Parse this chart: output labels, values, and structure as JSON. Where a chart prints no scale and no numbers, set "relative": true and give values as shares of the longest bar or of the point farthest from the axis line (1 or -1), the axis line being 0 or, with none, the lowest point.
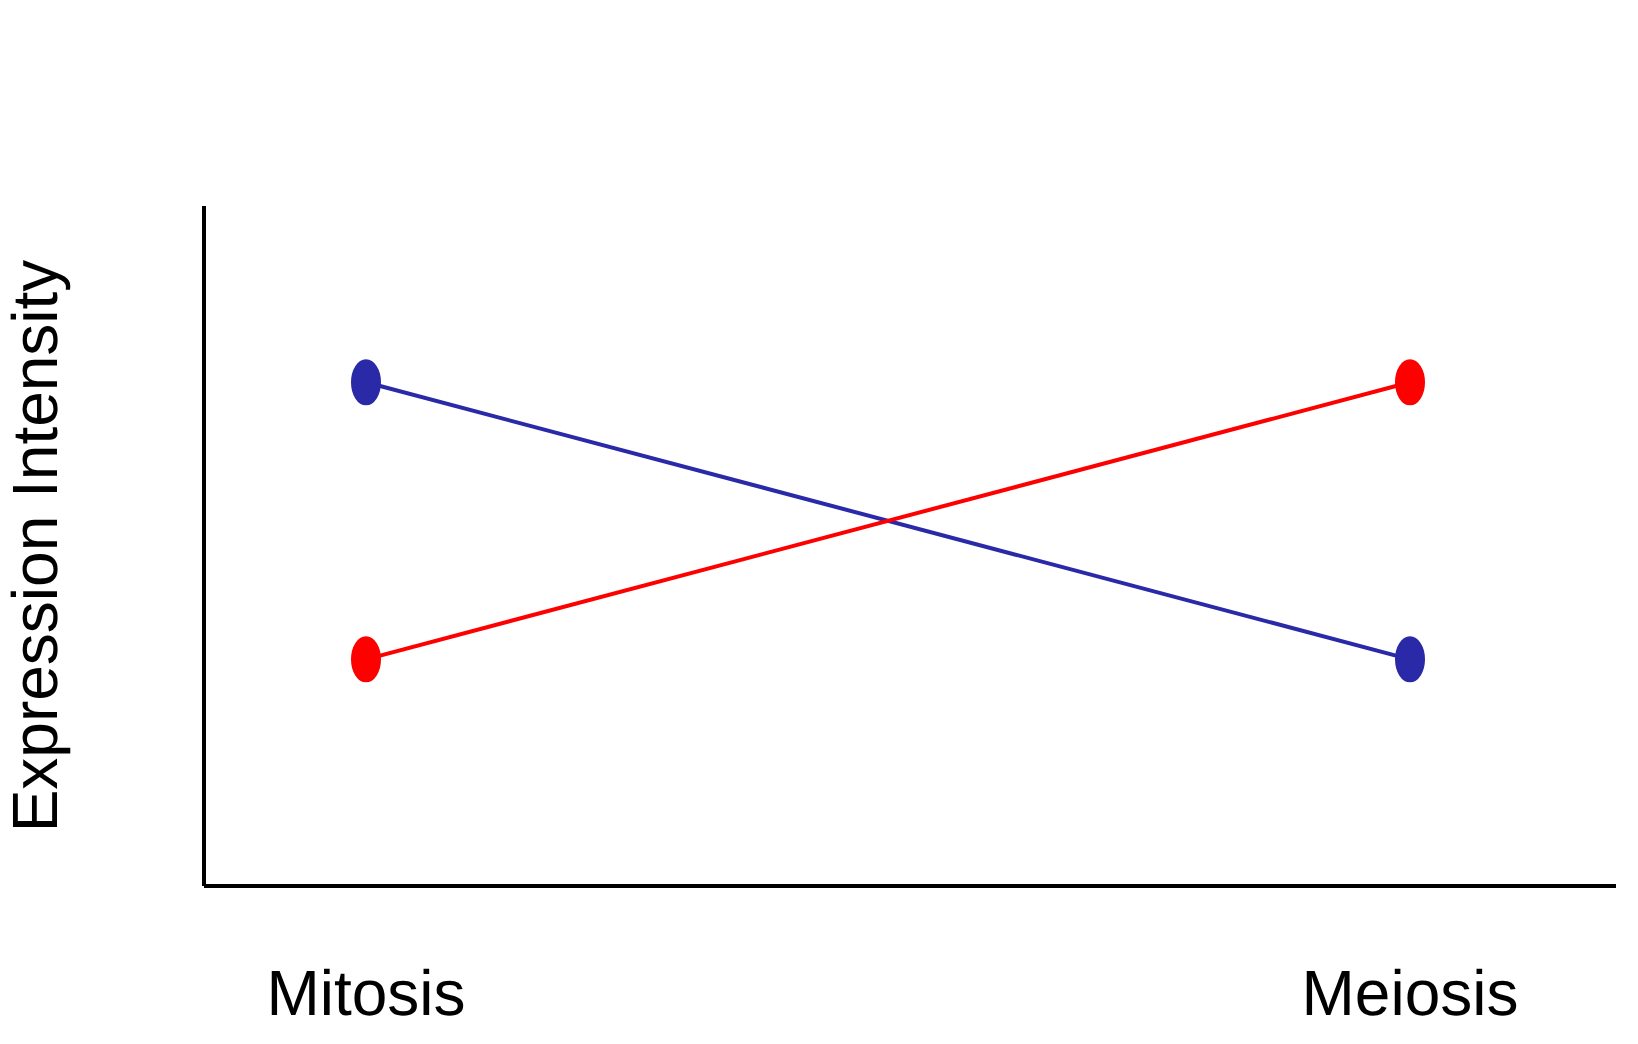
{
  "chart_data": {
    "type": "line",
    "relative": true,
    "ylabel": "Expression Intensity",
    "categories": [
      "Mitosis",
      "Meiosis"
    ],
    "marker": "circle",
    "line_style": "solid",
    "series": [
      {
        "color": "#2a2aa8",
        "values": [
          1,
          0.45
        ]
      },
      {
        "color": "#ff0000",
        "values": [
          0.45,
          1
        ]
      }
    ]
  }
}
